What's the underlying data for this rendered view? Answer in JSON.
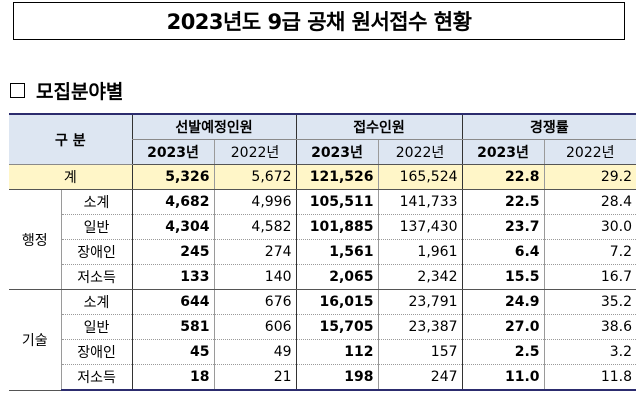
{
  "title": "2023년도 9급 공채 원서접수 현황",
  "section_heading": "모집분야별",
  "table": {
    "header_category": "구 분",
    "groups": [
      "선발예정인원",
      "접수인원",
      "경쟁률"
    ],
    "years": [
      "2023년",
      "2022년"
    ],
    "total": {
      "label": "계",
      "values": [
        "5,326",
        "5,672",
        "121,526",
        "165,524",
        "22.8",
        "29.2"
      ]
    },
    "categories": [
      {
        "name": "행정",
        "rows": [
          {
            "label": "소계",
            "values": [
              "4,682",
              "4,996",
              "105,511",
              "141,733",
              "22.5",
              "28.4"
            ]
          },
          {
            "label": "일반",
            "values": [
              "4,304",
              "4,582",
              "101,885",
              "137,430",
              "23.7",
              "30.0"
            ]
          },
          {
            "label": "장애인",
            "values": [
              "245",
              "274",
              "1,561",
              "1,961",
              "6.4",
              "7.2"
            ]
          },
          {
            "label": "저소득",
            "values": [
              "133",
              "140",
              "2,065",
              "2,342",
              "15.5",
              "16.7"
            ]
          }
        ]
      },
      {
        "name": "기술",
        "rows": [
          {
            "label": "소계",
            "values": [
              "644",
              "676",
              "16,015",
              "23,791",
              "24.9",
              "35.2"
            ]
          },
          {
            "label": "일반",
            "values": [
              "581",
              "606",
              "15,705",
              "23,387",
              "27.0",
              "38.6"
            ]
          },
          {
            "label": "장애인",
            "values": [
              "45",
              "49",
              "112",
              "157",
              "2.5",
              "3.2"
            ]
          },
          {
            "label": "저소득",
            "values": [
              "18",
              "21",
              "198",
              "247",
              "11.0",
              "11.8"
            ]
          }
        ]
      }
    ]
  }
}
